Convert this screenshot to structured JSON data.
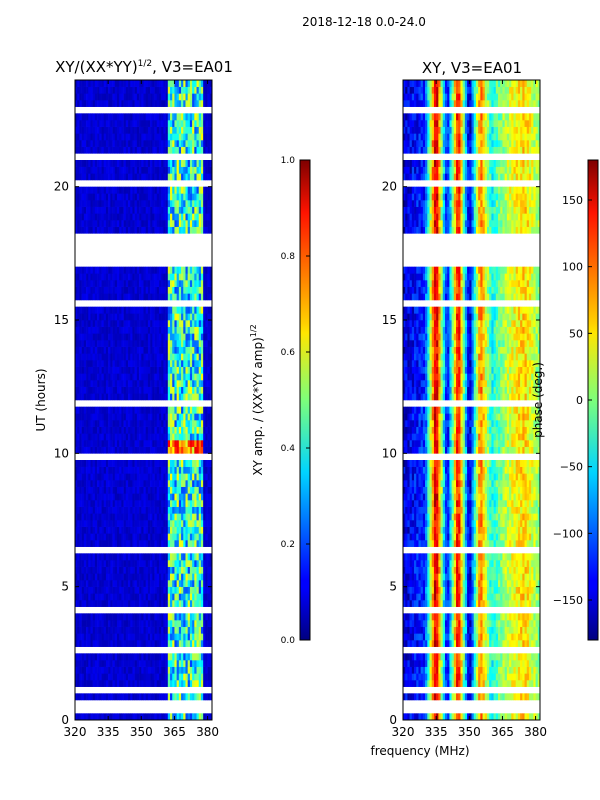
{
  "figure_title": "2018-12-18 0.0-24.0",
  "xlabel_shared": "frequency (MHz)",
  "chart_data": [
    {
      "type": "heatmap",
      "title": "XY/(XX*YY)",
      "title_exponent": "1/2",
      "title_suffix": ", V3=EA01",
      "xlabel": "frequency (MHz)",
      "ylabel": "UT (hours)",
      "xlim": [
        320,
        382
      ],
      "ylim": [
        0,
        24
      ],
      "xticks": [
        320,
        335,
        350,
        365,
        380
      ],
      "yticks": [
        0,
        5,
        10,
        15,
        20
      ],
      "colorbar": {
        "label": "XY amp. / (XX*YY amp)",
        "label_exponent": "1/2",
        "range": [
          0.0,
          1.0
        ],
        "ticks": [
          "0.0",
          "0.2",
          "0.4",
          "0.6",
          "0.8",
          "1.0"
        ],
        "colormap": "jet"
      },
      "flagged_time_gaps": [
        [
          0.0,
          0.08
        ],
        [
          0.25,
          0.85
        ],
        [
          1.0,
          1.3
        ],
        [
          2.45,
          2.65
        ],
        [
          4.05,
          4.15
        ],
        [
          6.35,
          6.55
        ],
        [
          9.75,
          9.95
        ],
        [
          11.75,
          11.95
        ],
        [
          15.45,
          15.8
        ],
        [
          17.05,
          18.3
        ],
        [
          20.1,
          20.35
        ],
        [
          21.05,
          21.3
        ],
        [
          22.8,
          22.95
        ]
      ],
      "description_values": {
        "background_level": 0.08,
        "rfi_band_MHz": [
          362,
          378
        ],
        "rfi_band_level": 0.45
      }
    },
    {
      "type": "heatmap",
      "title": "XY, V3=EA01",
      "xlabel": "frequency (MHz)",
      "ylabel": "",
      "xlim": [
        320,
        382
      ],
      "ylim": [
        0,
        24
      ],
      "xticks": [
        320,
        335,
        350,
        365,
        380
      ],
      "yticks": [
        0,
        5,
        10,
        15,
        20
      ],
      "colorbar": {
        "label": "phase (deg.)",
        "range": [
          -180,
          180
        ],
        "ticks": [
          "150",
          "100",
          "50",
          "0",
          "−50",
          "−100",
          "−150"
        ],
        "tick_values": [
          150,
          100,
          50,
          0,
          -50,
          -100,
          -150
        ],
        "colormap": "jet"
      },
      "flagged_time_gaps": [
        [
          0.0,
          0.08
        ],
        [
          0.25,
          0.85
        ],
        [
          1.0,
          1.3
        ],
        [
          2.45,
          2.65
        ],
        [
          4.05,
          4.15
        ],
        [
          6.35,
          6.55
        ],
        [
          9.75,
          9.95
        ],
        [
          11.75,
          11.95
        ],
        [
          15.45,
          15.8
        ],
        [
          17.05,
          18.3
        ],
        [
          20.1,
          20.35
        ],
        [
          21.05,
          21.3
        ],
        [
          22.8,
          22.95
        ]
      ],
      "phase_profile_deg": [
        {
          "f": 320,
          "phase": -150
        },
        {
          "f": 330,
          "phase": -120
        },
        {
          "f": 335,
          "phase": 170
        },
        {
          "f": 340,
          "phase": -150
        },
        {
          "f": 345,
          "phase": 150
        },
        {
          "f": 350,
          "phase": -170
        },
        {
          "f": 355,
          "phase": 100
        },
        {
          "f": 360,
          "phase": -40
        },
        {
          "f": 368,
          "phase": 30
        },
        {
          "f": 375,
          "phase": 60
        },
        {
          "f": 382,
          "phase": 0
        }
      ]
    }
  ]
}
